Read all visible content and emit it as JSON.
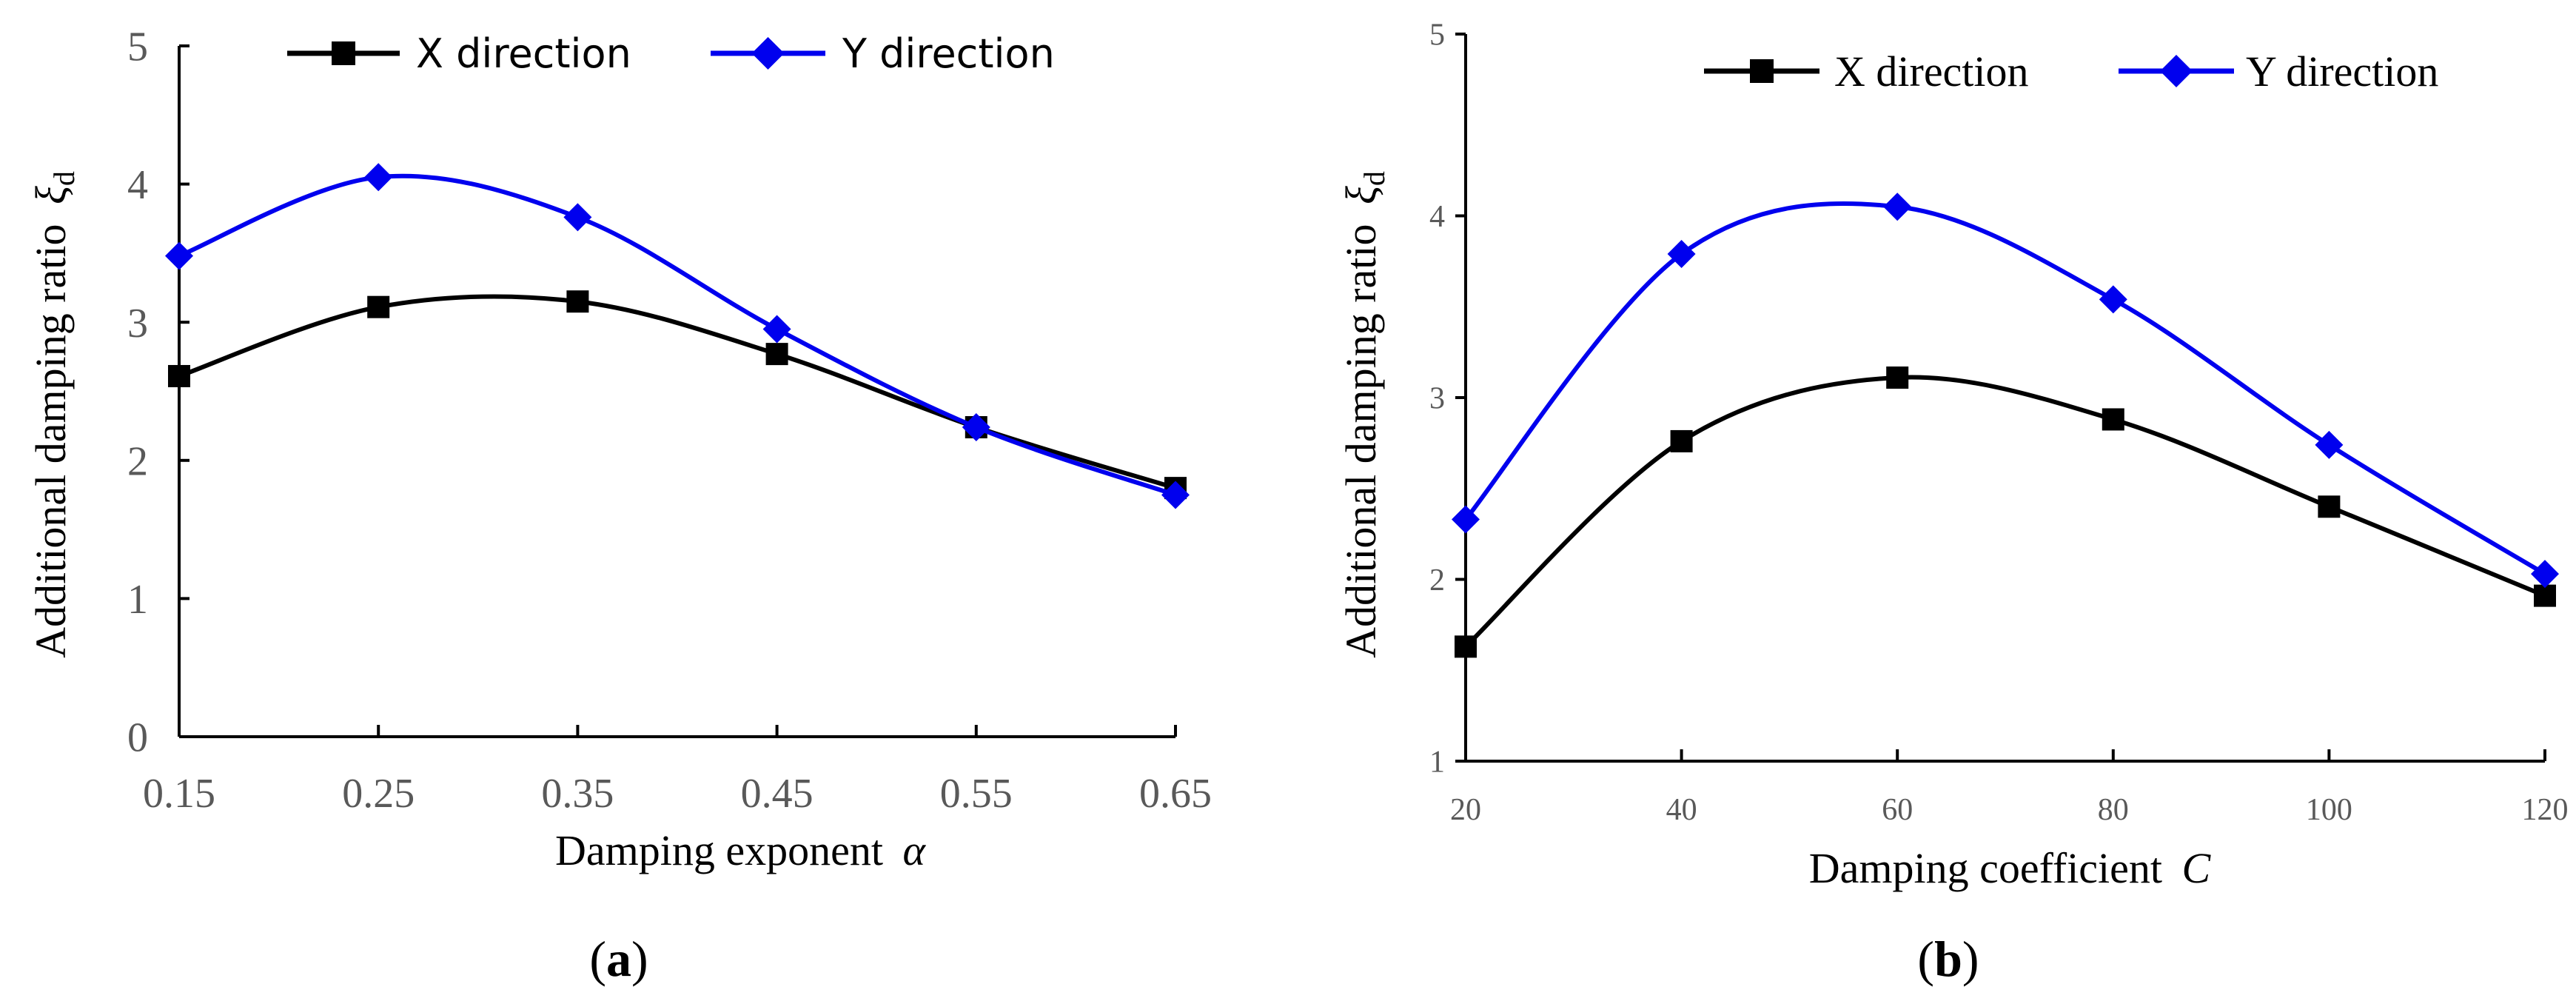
{
  "colors": {
    "x_series": "#000000",
    "y_series": "#0000ee",
    "axis": "#000000",
    "tick_text": "#595959"
  },
  "chart_data": [
    {
      "panel_label": "a",
      "type": "line",
      "smooth": true,
      "x": [
        0.15,
        0.25,
        0.35,
        0.45,
        0.55,
        0.65
      ],
      "x_tick_labels": [
        "0.15",
        "0.25",
        "0.35",
        "0.45",
        "0.55",
        "0.65"
      ],
      "xlim": [
        0.15,
        0.65
      ],
      "ylim": [
        0,
        5
      ],
      "y_ticks": [
        0,
        1,
        2,
        3,
        4,
        5
      ],
      "y_tick_labels": [
        "0",
        "1",
        "2",
        "3",
        "4",
        "5"
      ],
      "xlabel": "Damping exponent",
      "xlabel_symbol": "α",
      "ylabel": "Additional damping ratio",
      "ylabel_symbol": "ξ",
      "ylabel_subscript": "d",
      "legend_position": "top",
      "series": [
        {
          "name": "X direction",
          "color": "#000000",
          "marker": "square",
          "values": [
            2.61,
            3.11,
            3.15,
            2.77,
            2.24,
            1.8
          ]
        },
        {
          "name": "Y direction",
          "color": "#0000ee",
          "marker": "diamond",
          "values": [
            3.48,
            4.05,
            3.76,
            2.95,
            2.24,
            1.75
          ]
        }
      ]
    },
    {
      "panel_label": "b",
      "type": "line",
      "smooth": true,
      "x": [
        20,
        40,
        60,
        80,
        100,
        120
      ],
      "x_tick_labels": [
        "20",
        "40",
        "60",
        "80",
        "100",
        "120"
      ],
      "xlim": [
        20,
        120
      ],
      "ylim": [
        1,
        5
      ],
      "y_ticks": [
        1,
        2,
        3,
        4,
        5
      ],
      "y_tick_labels": [
        "1",
        "2",
        "3",
        "4",
        "5"
      ],
      "xlabel": "Damping coefficient",
      "xlabel_symbol": "C",
      "ylabel": "Additional damping ratio",
      "ylabel_symbol": "ξ",
      "ylabel_subscript": "d",
      "legend_position": "top-right",
      "series": [
        {
          "name": "X direction",
          "color": "#000000",
          "marker": "square",
          "values": [
            1.63,
            2.76,
            3.11,
            2.88,
            2.4,
            1.91
          ]
        },
        {
          "name": "Y direction",
          "color": "#0000ee",
          "marker": "diamond",
          "values": [
            2.33,
            3.79,
            4.05,
            3.54,
            2.74,
            2.03
          ]
        }
      ]
    }
  ]
}
